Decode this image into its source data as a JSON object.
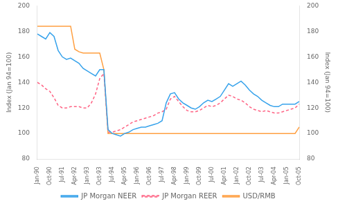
{
  "chart_data": {
    "type": "line",
    "ylabel": "Index (Jan 94=100)",
    "y2label": "Index (Jan 94=100)",
    "categories": [
      "Jan-90",
      null,
      null,
      "Oct-90",
      null,
      null,
      "Jul-91",
      null,
      null,
      "Apr-92",
      null,
      null,
      "Jan-93",
      null,
      null,
      "Oct-93",
      null,
      null,
      "Jul-94",
      null,
      null,
      "Apr-95",
      null,
      null,
      "Jan-96",
      null,
      null,
      "Oct-96",
      null,
      null,
      "Jul-97",
      null,
      null,
      "Apr-98",
      null,
      null,
      "Jan-99",
      null,
      null,
      "Oct-99",
      null,
      null,
      "Jul-00",
      null,
      null,
      "Apr-01",
      null,
      null,
      "Jan-02",
      null,
      null,
      "Oct-02",
      null,
      null,
      "Jul-03",
      null,
      null,
      "Apr-04",
      null,
      null,
      "Jan-05",
      null,
      null,
      "Oct-05"
    ],
    "series": [
      {
        "name": "JP Morgan NEER",
        "line_style": "solid",
        "values": [
          178,
          176,
          174,
          179,
          176,
          165,
          160,
          158,
          159,
          157,
          155,
          151,
          149,
          147,
          145,
          150,
          150,
          103,
          100,
          99,
          98,
          100,
          101,
          103,
          104,
          105,
          105,
          106,
          107,
          108,
          110,
          124,
          131,
          132,
          127,
          124,
          122,
          120,
          119,
          121,
          124,
          126,
          125,
          127,
          129,
          134,
          139,
          137,
          139,
          141,
          138,
          134,
          131,
          129,
          126,
          124,
          122,
          121,
          121,
          123,
          123,
          123,
          123,
          125
        ]
      },
      {
        "name": "JP Morgan REER",
        "line_style": "dashed",
        "values": [
          140,
          138,
          135,
          133,
          128,
          122,
          120,
          120,
          121,
          121,
          121,
          120,
          120,
          124,
          131,
          143,
          147,
          101,
          101,
          102,
          103,
          105,
          107,
          109,
          110,
          111,
          112,
          113,
          114,
          116,
          117,
          119,
          127,
          129,
          125,
          121,
          118,
          117,
          117,
          118,
          120,
          122,
          121,
          122,
          124,
          127,
          130,
          129,
          127,
          126,
          124,
          121,
          119,
          118,
          117,
          118,
          117,
          116,
          116,
          117,
          118,
          119,
          120,
          123
        ]
      },
      {
        "name": "USD/RMB",
        "line_style": "solid",
        "values": [
          184,
          184,
          184,
          184,
          184,
          184,
          184,
          184,
          184,
          166,
          164,
          163,
          163,
          163,
          163,
          163,
          150,
          100,
          100,
          100,
          100,
          100,
          100,
          100,
          100,
          100,
          100,
          100,
          100,
          100,
          100,
          100,
          100,
          100,
          100,
          100,
          100,
          100,
          100,
          100,
          100,
          100,
          100,
          100,
          100,
          100,
          100,
          100,
          100,
          100,
          100,
          100,
          100,
          100,
          100,
          100,
          100,
          100,
          100,
          100,
          100,
          100,
          100,
          105
        ]
      }
    ],
    "ylim": [
      80,
      200
    ],
    "yticks": [
      80,
      100,
      120,
      140,
      160,
      180,
      200
    ],
    "y2lim": [
      80,
      200
    ],
    "y2ticks": [
      80,
      100,
      120,
      140,
      160,
      180,
      200
    ],
    "grid": false,
    "legend": "bottom"
  }
}
